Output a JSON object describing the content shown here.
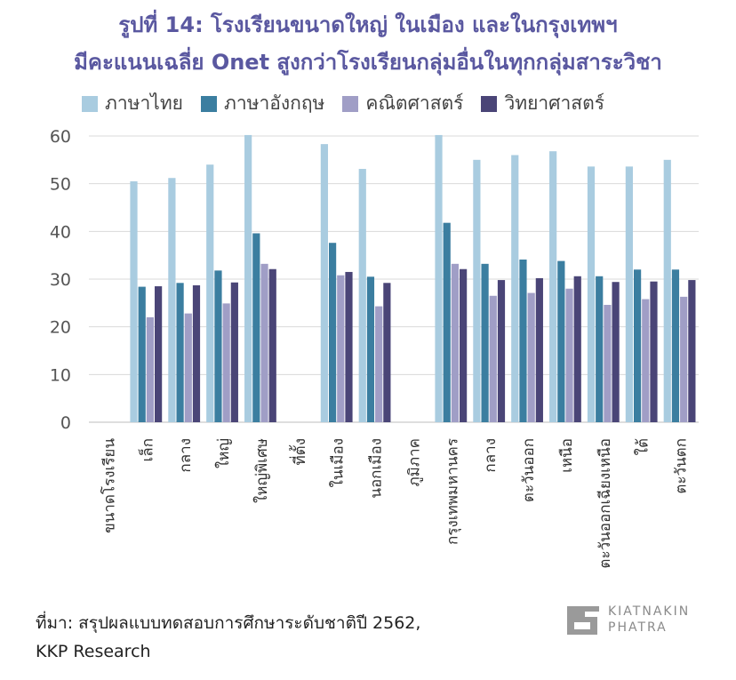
{
  "title": {
    "line1": "รูปที่ 14: โรงเรียนขนาดใหญ่ ในเมือง และในกรุงเทพฯ",
    "line2": "มีคะแนนเฉลี่ย Onet สูงกว่าโรงเรียนกลุ่มอื่นในทุกกลุ่มสาระวิชา"
  },
  "source": {
    "line1": "ที่มา: สรุปผลแบบทดสอบการศึกษาระดับชาติปี 2562,",
    "line2": "KKP Research"
  },
  "logo": {
    "line1": "KIATNAKIN",
    "line2": "PHATRA",
    "icon": "kiatnakin-phatra-logo-icon"
  },
  "chart_data": {
    "type": "bar",
    "ylim": [
      0,
      60
    ],
    "yticks": [
      0,
      10,
      20,
      30,
      40,
      50,
      60
    ],
    "grid": true,
    "legend_position": "top",
    "categories": [
      "ขนาดโรงเรียน",
      "เล็ก",
      "กลาง",
      "ใหญ่",
      "ใหญ่พิเศษ",
      "ที่ตั้ง",
      "ในเมือง",
      "นอกเมือง",
      "ภูมิภาค",
      "กรุงเทพมหานคร",
      "กลาง",
      "ตะวันออก",
      "เหนือ",
      "ตะวันออกเฉียงเหนือ",
      "ใต้",
      "ตะวันตก"
    ],
    "series": [
      {
        "name": "ภาษาไทย",
        "color": "#a9cce0",
        "values": [
          null,
          50.5,
          51.2,
          54.0,
          60.2,
          null,
          58.3,
          53.1,
          null,
          60.2,
          55.0,
          56.0,
          56.8,
          53.6,
          53.6,
          55.0
        ]
      },
      {
        "name": "ภาษาอังกฤษ",
        "color": "#3b7ea0",
        "values": [
          null,
          28.4,
          29.2,
          31.8,
          39.6,
          null,
          37.6,
          30.5,
          null,
          41.8,
          33.2,
          34.1,
          33.8,
          30.6,
          32.0,
          32.0
        ]
      },
      {
        "name": "คณิตศาสตร์",
        "color": "#a09ec6",
        "values": [
          null,
          22.0,
          22.8,
          24.9,
          33.2,
          null,
          30.8,
          24.3,
          null,
          33.2,
          26.5,
          27.1,
          28.0,
          24.6,
          25.8,
          26.3
        ]
      },
      {
        "name": "วิทยาศาสตร์",
        "color": "#4a4577",
        "values": [
          null,
          28.5,
          28.7,
          29.3,
          32.1,
          null,
          31.5,
          29.2,
          null,
          32.1,
          29.8,
          30.2,
          30.6,
          29.4,
          29.5,
          29.8
        ]
      }
    ]
  }
}
